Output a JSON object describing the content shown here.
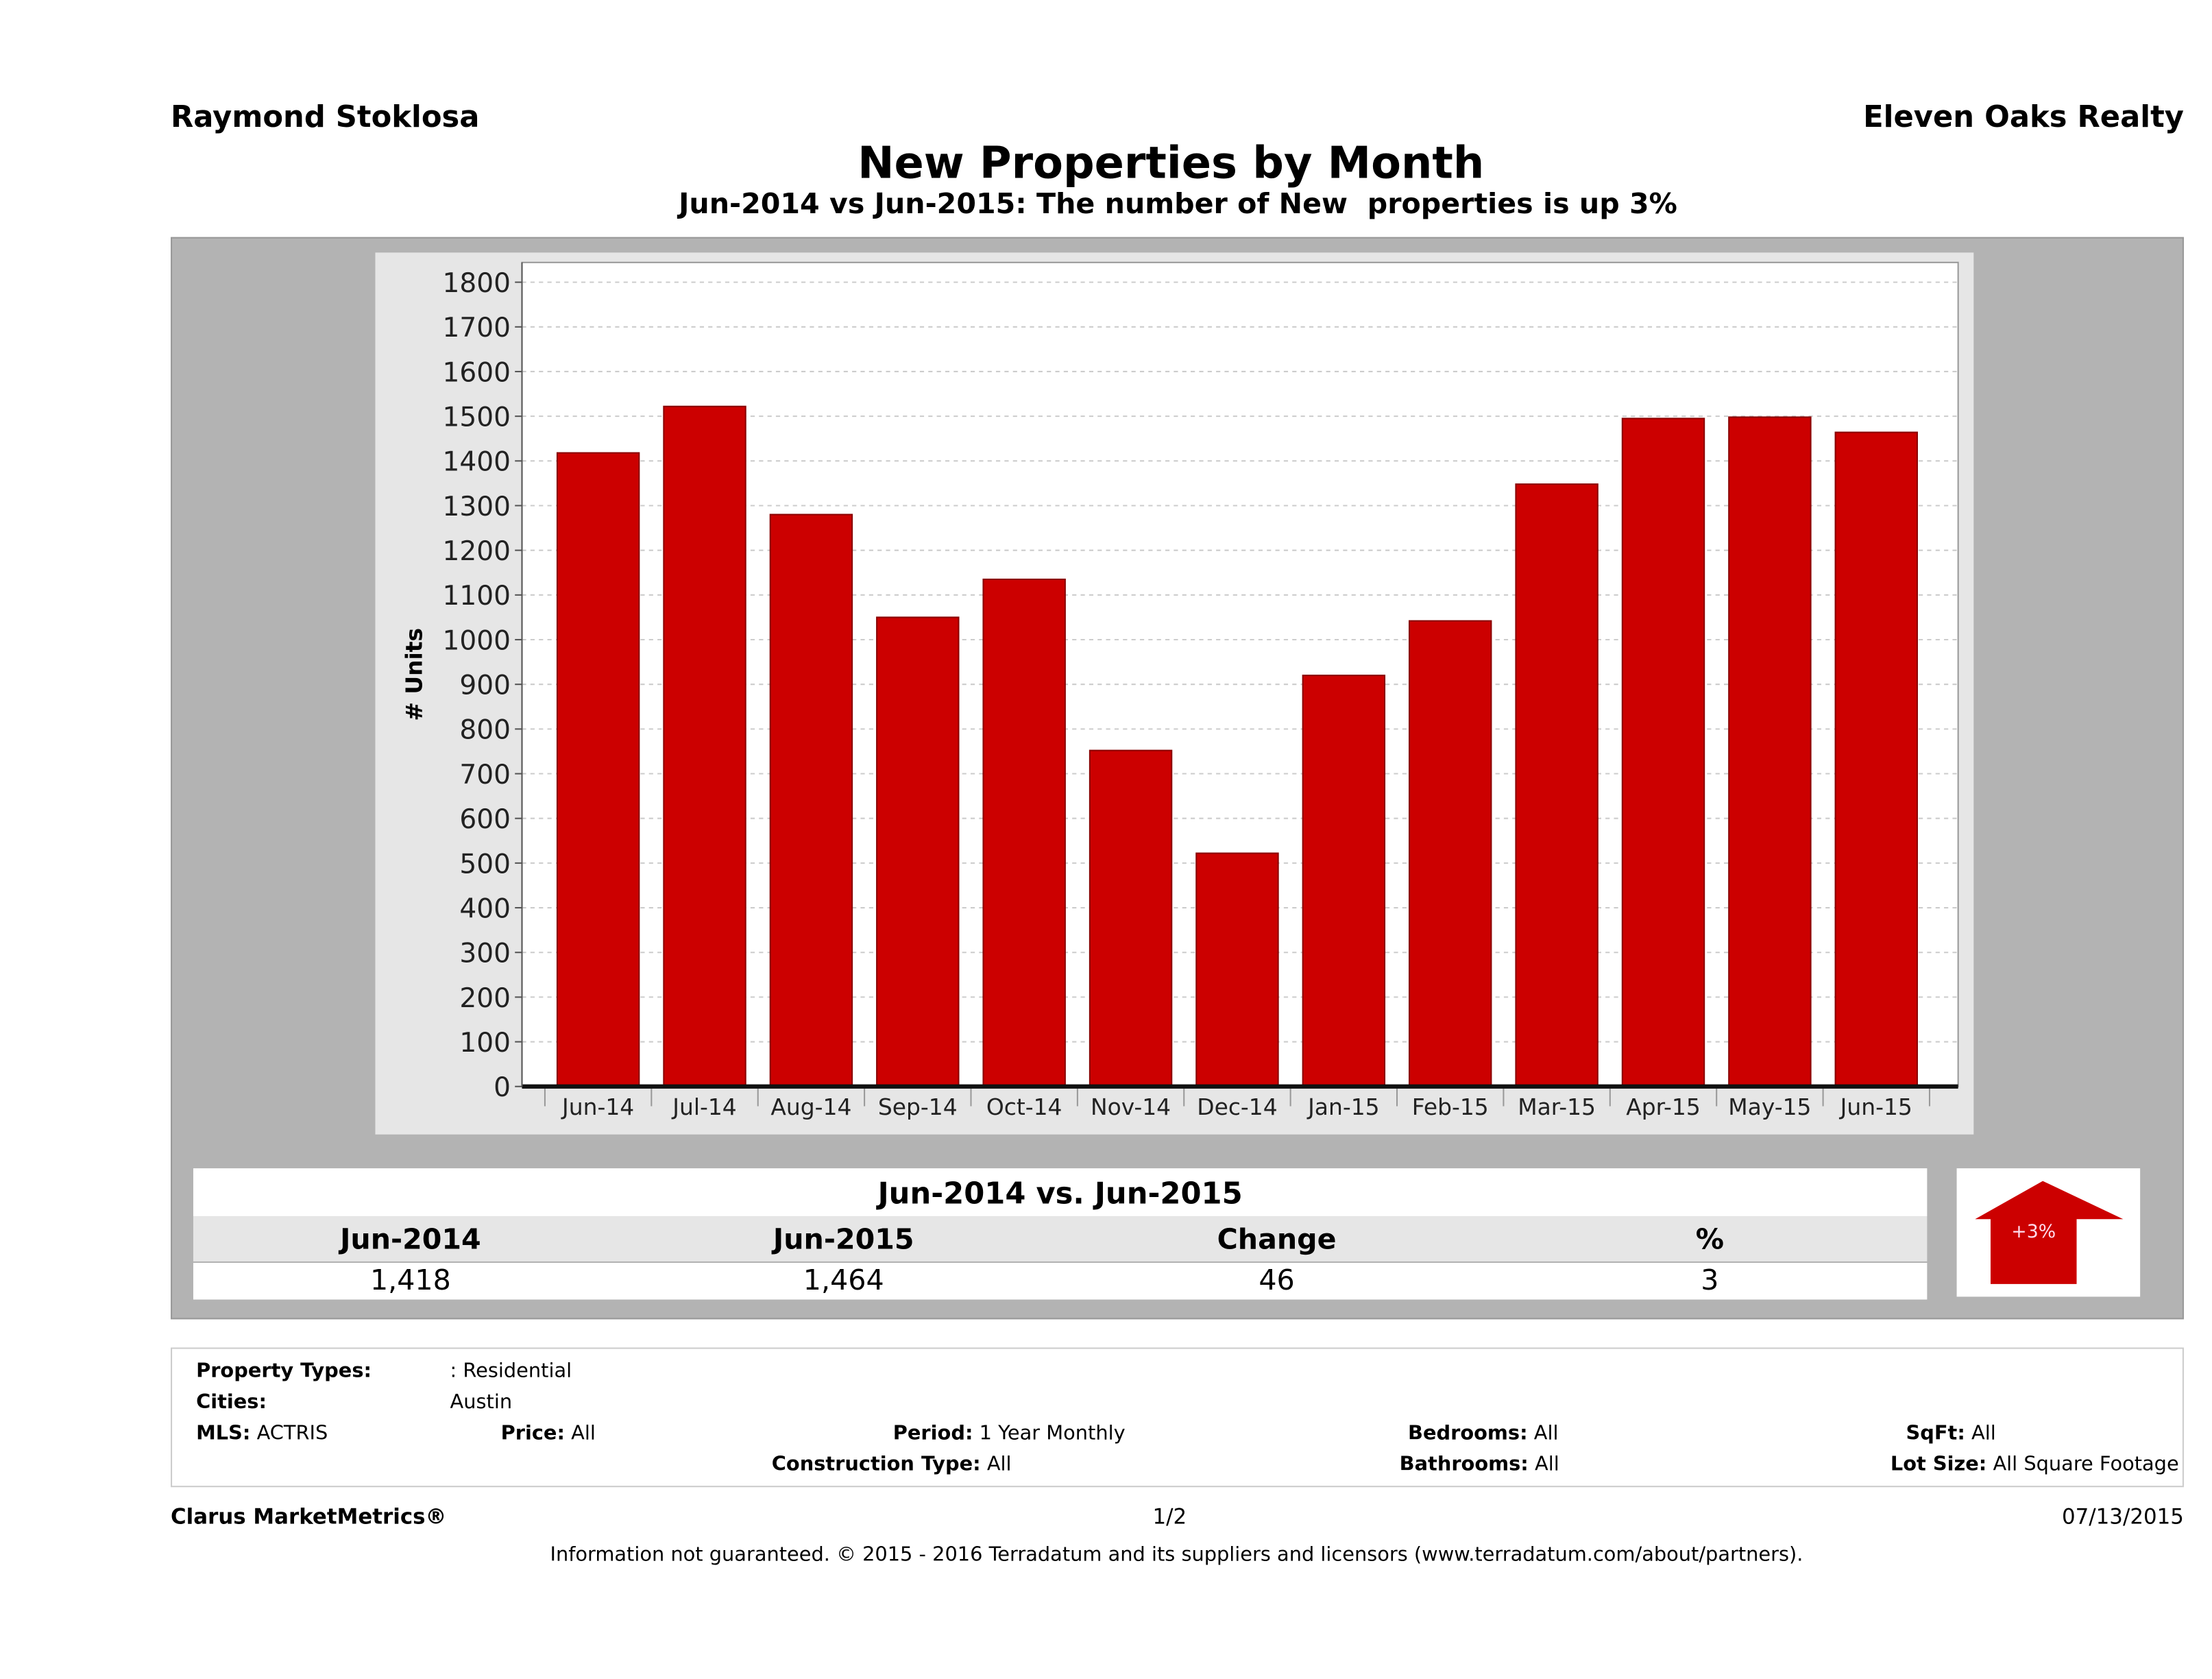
{
  "header": {
    "agent": "Raymond Stoklosa",
    "brokerage": "Eleven Oaks Realty"
  },
  "chart_data": {
    "type": "bar",
    "title": "New Properties by Month",
    "subtitle": "Jun-2014 vs Jun-2015: The number of New  properties is up 3%",
    "xlabel": "",
    "ylabel": "# Units",
    "ylim": [
      0,
      1800
    ],
    "yticks": [
      0,
      100,
      200,
      300,
      400,
      500,
      600,
      700,
      800,
      900,
      1000,
      1100,
      1200,
      1300,
      1400,
      1500,
      1600,
      1700,
      1800
    ],
    "grid": true,
    "categories": [
      "Jun-14",
      "Jul-14",
      "Aug-14",
      "Sep-14",
      "Oct-14",
      "Nov-14",
      "Dec-14",
      "Jan-15",
      "Feb-15",
      "Mar-15",
      "Apr-15",
      "May-15",
      "Jun-15"
    ],
    "values": [
      1418,
      1522,
      1280,
      1050,
      1135,
      752,
      522,
      920,
      1042,
      1348,
      1495,
      1498,
      1464
    ],
    "bar_color": "#cc0000"
  },
  "summary": {
    "title": "Jun-2014 vs. Jun-2015",
    "headers": [
      "Jun-2014",
      "Jun-2015",
      "Change",
      "%"
    ],
    "values": [
      "1,418",
      "1,464",
      "46",
      "3"
    ],
    "badge": "+3%"
  },
  "info": {
    "property_types_label": "Property Types:",
    "property_types": ": Residential",
    "cities_label": "Cities:",
    "cities": "Austin",
    "mls_label": "MLS:",
    "mls": "ACTRIS",
    "price_label": "Price:",
    "price": "All",
    "period_label": "Period:",
    "period": "1 Year Monthly",
    "bedrooms_label": "Bedrooms:",
    "bedrooms": "All",
    "sqft_label": "SqFt:",
    "sqft": "All",
    "construction_label": "Construction Type:",
    "construction": "All",
    "bathrooms_label": "Bathrooms:",
    "bathrooms": "All",
    "lot_label": "Lot Size:",
    "lot": "All Square Footage"
  },
  "footer": {
    "brand": "Clarus MarketMetrics®",
    "page": "1/2",
    "date": "07/13/2015",
    "disclaimer": "Information not guaranteed. © 2015 - 2016 Terradatum and its suppliers and licensors (www.terradatum.com/about/partners)."
  }
}
